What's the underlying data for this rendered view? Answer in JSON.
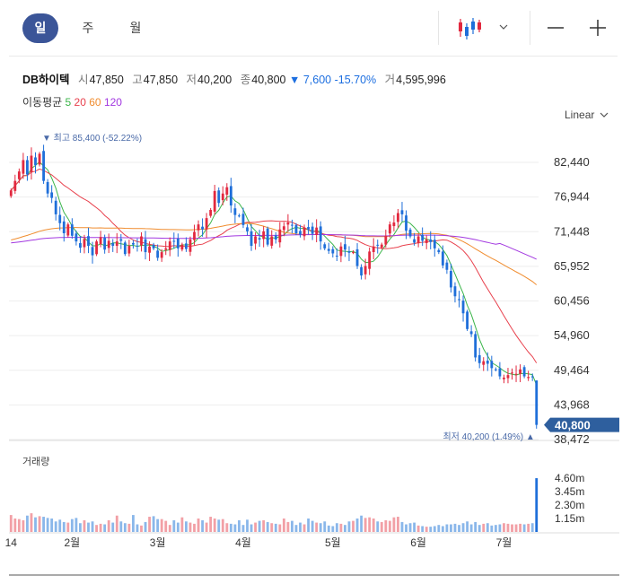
{
  "period_tabs": [
    {
      "label": "일",
      "active": true
    },
    {
      "label": "주",
      "active": false
    },
    {
      "label": "월",
      "active": false
    }
  ],
  "toolbar": {
    "chart_type_icon": "candlestick-icon",
    "dropdown_icon": "chevron-down-icon",
    "zoom_out_icon": "minus-icon",
    "zoom_in_icon": "plus-icon"
  },
  "quote": {
    "name": "DB하이텍",
    "open_label": "시",
    "open": "47,850",
    "high_label": "고",
    "high": "47,850",
    "low_label": "저",
    "low": "40,200",
    "close_label": "종",
    "close": "40,800",
    "change": "▼ 7,600",
    "change_pct": "-15.70%",
    "volume_label": "거",
    "volume": "4,595,996"
  },
  "ma_legend": {
    "title": "이동평균",
    "items": [
      {
        "label": "5",
        "color": "#3bb54a"
      },
      {
        "label": "20",
        "color": "#e8414d"
      },
      {
        "label": "60",
        "color": "#f08c2e"
      },
      {
        "label": "120",
        "color": "#a238e0"
      }
    ]
  },
  "scale_select": "Linear",
  "colors": {
    "up": "#e2293f",
    "down": "#1f6fd9",
    "up_vol": "#f2a0a6",
    "down_vol": "#8ab7ea",
    "current_price_bg": "#2e5f9e",
    "grid": "#eeeeee"
  },
  "chart_data": {
    "type": "candlestick",
    "y_ticks": [
      "82,440",
      "76,944",
      "71,448",
      "65,952",
      "60,456",
      "54,960",
      "49,464",
      "43,968",
      "38,472"
    ],
    "y_tick_values": [
      82440,
      76944,
      71448,
      65952,
      60456,
      54960,
      49464,
      43968,
      38472
    ],
    "ylim": [
      37400,
      90000
    ],
    "x_labels": [
      {
        "label": "14",
        "index": 0
      },
      {
        "label": "2월",
        "index": 15
      },
      {
        "label": "3월",
        "index": 36
      },
      {
        "label": "4월",
        "index": 57
      },
      {
        "label": "5월",
        "index": 79
      },
      {
        "label": "6월",
        "index": 100
      },
      {
        "label": "7월",
        "index": 121
      }
    ],
    "high_marker": {
      "label": "최고",
      "value": "85,400",
      "pct": "(-52.22%)",
      "index": 5
    },
    "low_marker": {
      "label": "최저",
      "value": "40,200",
      "pct": "(1.49%)",
      "index": 129
    },
    "current_price": "40,800",
    "volume_title": "거래량",
    "volume_ticks": [
      "4.60m",
      "3.45m",
      "2.30m",
      "1.15m"
    ],
    "volume_tick_values": [
      4600000,
      3450000,
      2300000,
      1150000
    ],
    "ma_periods": [
      5,
      20,
      60,
      120
    ],
    "closes": [
      78000,
      79500,
      81000,
      82800,
      80500,
      83500,
      82000,
      83800,
      79500,
      77500,
      76800,
      74200,
      72800,
      71200,
      72600,
      70800,
      69900,
      68900,
      70300,
      69200,
      67700,
      69900,
      70600,
      68600,
      70000,
      69200,
      69900,
      70000,
      67900,
      69200,
      69400,
      69100,
      70700,
      68200,
      69100,
      68800,
      67300,
      68200,
      68800,
      69900,
      69900,
      68800,
      69400,
      68700,
      70200,
      71400,
      72600,
      71800,
      73600,
      74900,
      77900,
      76000,
      77500,
      78500,
      75600,
      74100,
      74000,
      72500,
      71500,
      69200,
      70700,
      70200,
      71500,
      69400,
      70700,
      70200,
      71800,
      72300,
      72900,
      72500,
      71200,
      71000,
      72100,
      71800,
      71100,
      72100,
      69900,
      68800,
      68400,
      68000,
      67600,
      69100,
      68600,
      68100,
      68200,
      66000,
      64500,
      66000,
      68300,
      69100,
      69300,
      69400,
      70800,
      72600,
      72900,
      74400,
      74200,
      71600,
      70700,
      69700,
      70700,
      70000,
      70200,
      69800,
      68800,
      68200,
      66100,
      65400,
      62600,
      61200,
      60600,
      58500,
      56000,
      55200,
      51500,
      50600,
      50900,
      50500,
      49800,
      49600,
      48500,
      48300,
      48700,
      49100,
      48900,
      49600,
      48500,
      48400,
      48400,
      40800
    ],
    "volumes": [
      1450000,
      1150000,
      1100000,
      1000000,
      1400000,
      1600000,
      1250000,
      1350000,
      1300000,
      1200000,
      1150000,
      900000,
      1050000,
      850000,
      800000,
      1100000,
      1200000,
      750000,
      1000000,
      800000,
      900000,
      600000,
      700000,
      650000,
      1000000,
      800000,
      1400000,
      900000,
      750000,
      700000,
      1450000,
      650000,
      550000,
      850000,
      1300000,
      1350000,
      1100000,
      1100000,
      950000,
      600000,
      1000000,
      800000,
      1250000,
      900000,
      800000,
      700000,
      1150000,
      1000000,
      800000,
      1300000,
      1150000,
      1050000,
      1100000,
      750000,
      700000,
      650000,
      1000000,
      600000,
      1050000,
      650000,
      800000,
      950000,
      1000000,
      850000,
      750000,
      700000,
      650000,
      1150000,
      850000,
      950000,
      600000,
      800000,
      650000,
      1150000,
      950000,
      800000,
      750000,
      900000,
      550000,
      500000,
      750000,
      700000,
      600000,
      900000,
      950000,
      1150000,
      1400000,
      1200000,
      1250000,
      1150000,
      900000,
      850000,
      1000000,
      950000,
      1250000,
      1300000,
      850000,
      650000,
      750000,
      800000,
      550000,
      500000,
      450000,
      450000,
      500000,
      600000,
      500000,
      650000,
      650000,
      700000,
      600000,
      750000,
      900000,
      650000,
      850000,
      600000,
      700000,
      750000,
      550000,
      600000,
      650000,
      750000,
      700000,
      650000,
      650000,
      700000,
      650000,
      700000,
      750000,
      4595996
    ]
  }
}
